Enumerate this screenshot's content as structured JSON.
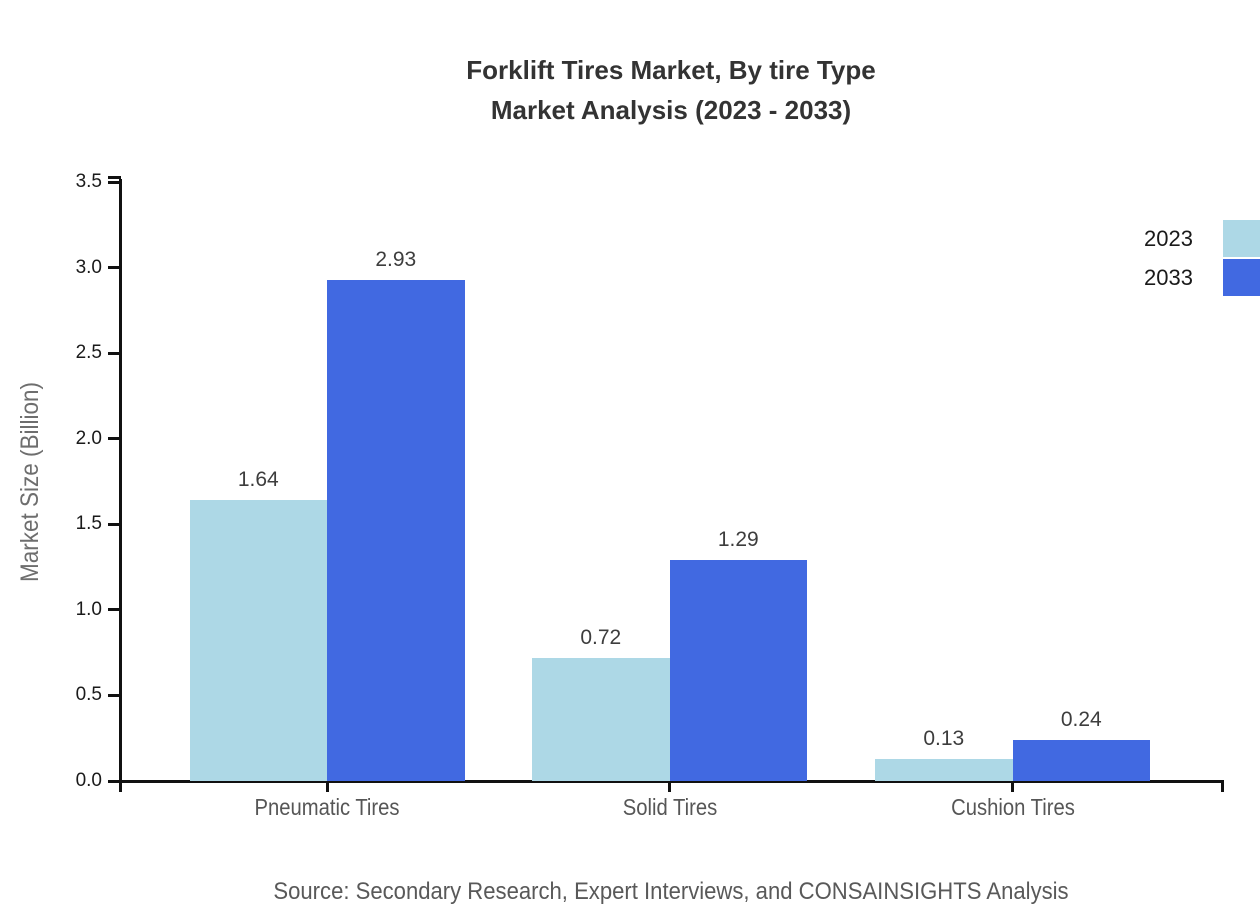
{
  "title": {
    "line1": "Forklift Tires Market, By tire Type",
    "line2": "Market Analysis (2023 - 2033)"
  },
  "chart_data": {
    "type": "bar",
    "categories": [
      "Pneumatic Tires",
      "Solid Tires",
      "Cushion Tires"
    ],
    "series": [
      {
        "name": "2023",
        "color": "#ADD8E6",
        "values": [
          1.64,
          0.72,
          0.13
        ]
      },
      {
        "name": "2033",
        "color": "#4169E1",
        "values": [
          2.93,
          1.29,
          0.24
        ]
      }
    ],
    "title": "Forklift Tires Market, By tire Type Market Analysis (2023 - 2033)",
    "xlabel": "",
    "ylabel": "Market Size (Billion)",
    "ylim": [
      0,
      3.5
    ],
    "yticks": [
      "0.0",
      "0.5",
      "1.0",
      "1.5",
      "2.0",
      "2.5",
      "3.0",
      "3.5"
    ],
    "grid": false,
    "legend_position": "top-right",
    "value_label_format": "0.00"
  },
  "legend": {
    "items": [
      {
        "label": "2023",
        "color": "#ADD8E6"
      },
      {
        "label": "2033",
        "color": "#4169E1"
      }
    ]
  },
  "source": {
    "text": "Source: Secondary Research, Expert Interviews, and CONSAINSIGHTS Analysis"
  },
  "colors": {
    "series_2023": "#ADD8E6",
    "series_2033": "#4169E1",
    "axis": "#111111",
    "title_text": "#333333",
    "muted_text": "#595959"
  }
}
